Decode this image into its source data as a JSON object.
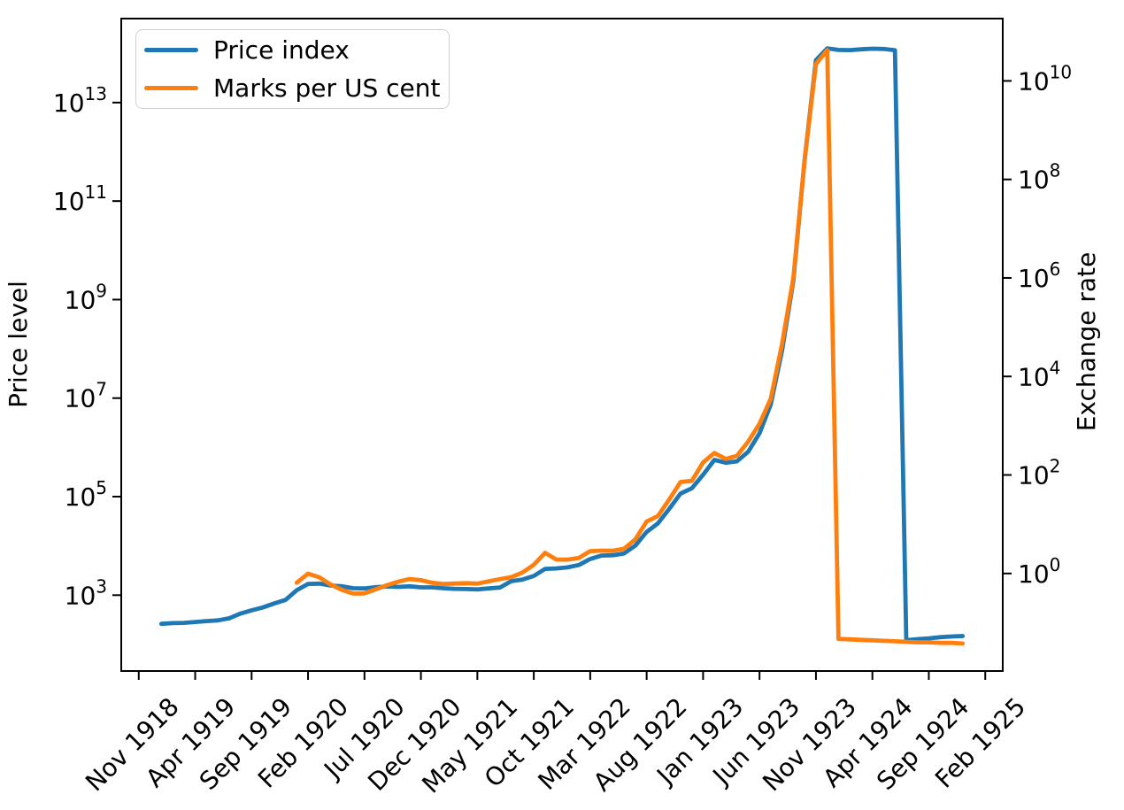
{
  "figure": {
    "background": "#ffffff",
    "left_axis_label": "Price level",
    "right_axis_label": "Exchange rate"
  },
  "legend": {
    "items": [
      {
        "label": "Price index",
        "color": "#1f77b4"
      },
      {
        "label": "Marks per US cent",
        "color": "#ff7f0e"
      }
    ]
  },
  "axes": {
    "x_tick_labels": [
      "Nov 1918",
      "Apr 1919",
      "Sep 1919",
      "Feb 1920",
      "Jul 1920",
      "Dec 1920",
      "May 1921",
      "Oct 1921",
      "Mar 1922",
      "Aug 1922",
      "Jan 1923",
      "Jun 1923",
      "Nov 1923",
      "Apr 1924",
      "Sep 1924",
      "Feb 1925"
    ],
    "x_tick_interval_months": 5,
    "left_y_tick_exponents": [
      3,
      5,
      7,
      9,
      11,
      13
    ],
    "right_y_tick_exponents": [
      0,
      2,
      4,
      6,
      8,
      10
    ],
    "tick_label_base": "10"
  },
  "chart_data": {
    "type": "line",
    "title": "",
    "xlabel": "",
    "ylabel_left": "Price level",
    "ylabel_right": "Exchange rate",
    "x_unit": "months since Nov 1918",
    "xlim_months": [
      -1.55,
      76.55
    ],
    "left_log10_lim": [
      1.46,
      14.705
    ],
    "right_log10_lim": [
      -1.98,
      11.265
    ],
    "y_scale": "log",
    "grid": false,
    "legend_position": "upper left",
    "series": [
      {
        "name": "Price index",
        "axis": "left",
        "color": "#1f77b4",
        "start": {
          "year": 1919,
          "month": 1
        },
        "frequency": "monthly",
        "values": [
          262,
          270,
          274,
          286,
          297,
          308,
          339,
          422,
          493,
          562,
          678,
          800,
          1260,
          1690,
          1710,
          1570,
          1510,
          1380,
          1370,
          1450,
          1500,
          1470,
          1510,
          1440,
          1440,
          1380,
          1340,
          1330,
          1310,
          1370,
          1430,
          1920,
          2070,
          2460,
          3420,
          3490,
          3670,
          4100,
          5430,
          6360,
          6460,
          7030,
          10160,
          19200,
          28700,
          56600,
          115100,
          147480,
          278500,
          558500,
          488800,
          521200,
          817000,
          1938500,
          7478700,
          94404100,
          2394893000,
          709480000000,
          72570000000000,
          126160000000000,
          117320000000000,
          116170000000000,
          120670000000000,
          124050000000000,
          122460000000000,
          115900000000000,
          122,
          128,
          133,
          140,
          145,
          148
        ]
      },
      {
        "name": "Marks per US cent",
        "axis": "right",
        "color": "#ff7f0e",
        "start": {
          "year": 1920,
          "month": 1
        },
        "frequency": "monthly",
        "values": [
          0.648,
          0.991,
          0.839,
          0.596,
          0.465,
          0.391,
          0.395,
          0.477,
          0.58,
          0.682,
          0.772,
          0.73,
          0.649,
          0.613,
          0.625,
          0.635,
          0.623,
          0.694,
          0.767,
          0.843,
          1.049,
          1.502,
          2.63,
          1.918,
          1.92,
          2.078,
          2.842,
          2.91,
          2.901,
          3.174,
          4.932,
          11.346,
          14.659,
          31.81,
          71.831,
          75.893,
          179.7,
          279.2,
          211.9,
          244.8,
          476.7,
          1100,
          3534,
          46205,
          988607,
          252602080,
          21936000000,
          42000000000,
          0.047,
          0.046,
          0.045,
          0.044,
          0.043,
          0.042,
          0.041,
          0.04,
          0.04,
          0.039,
          0.039,
          0.038
        ]
      }
    ]
  }
}
